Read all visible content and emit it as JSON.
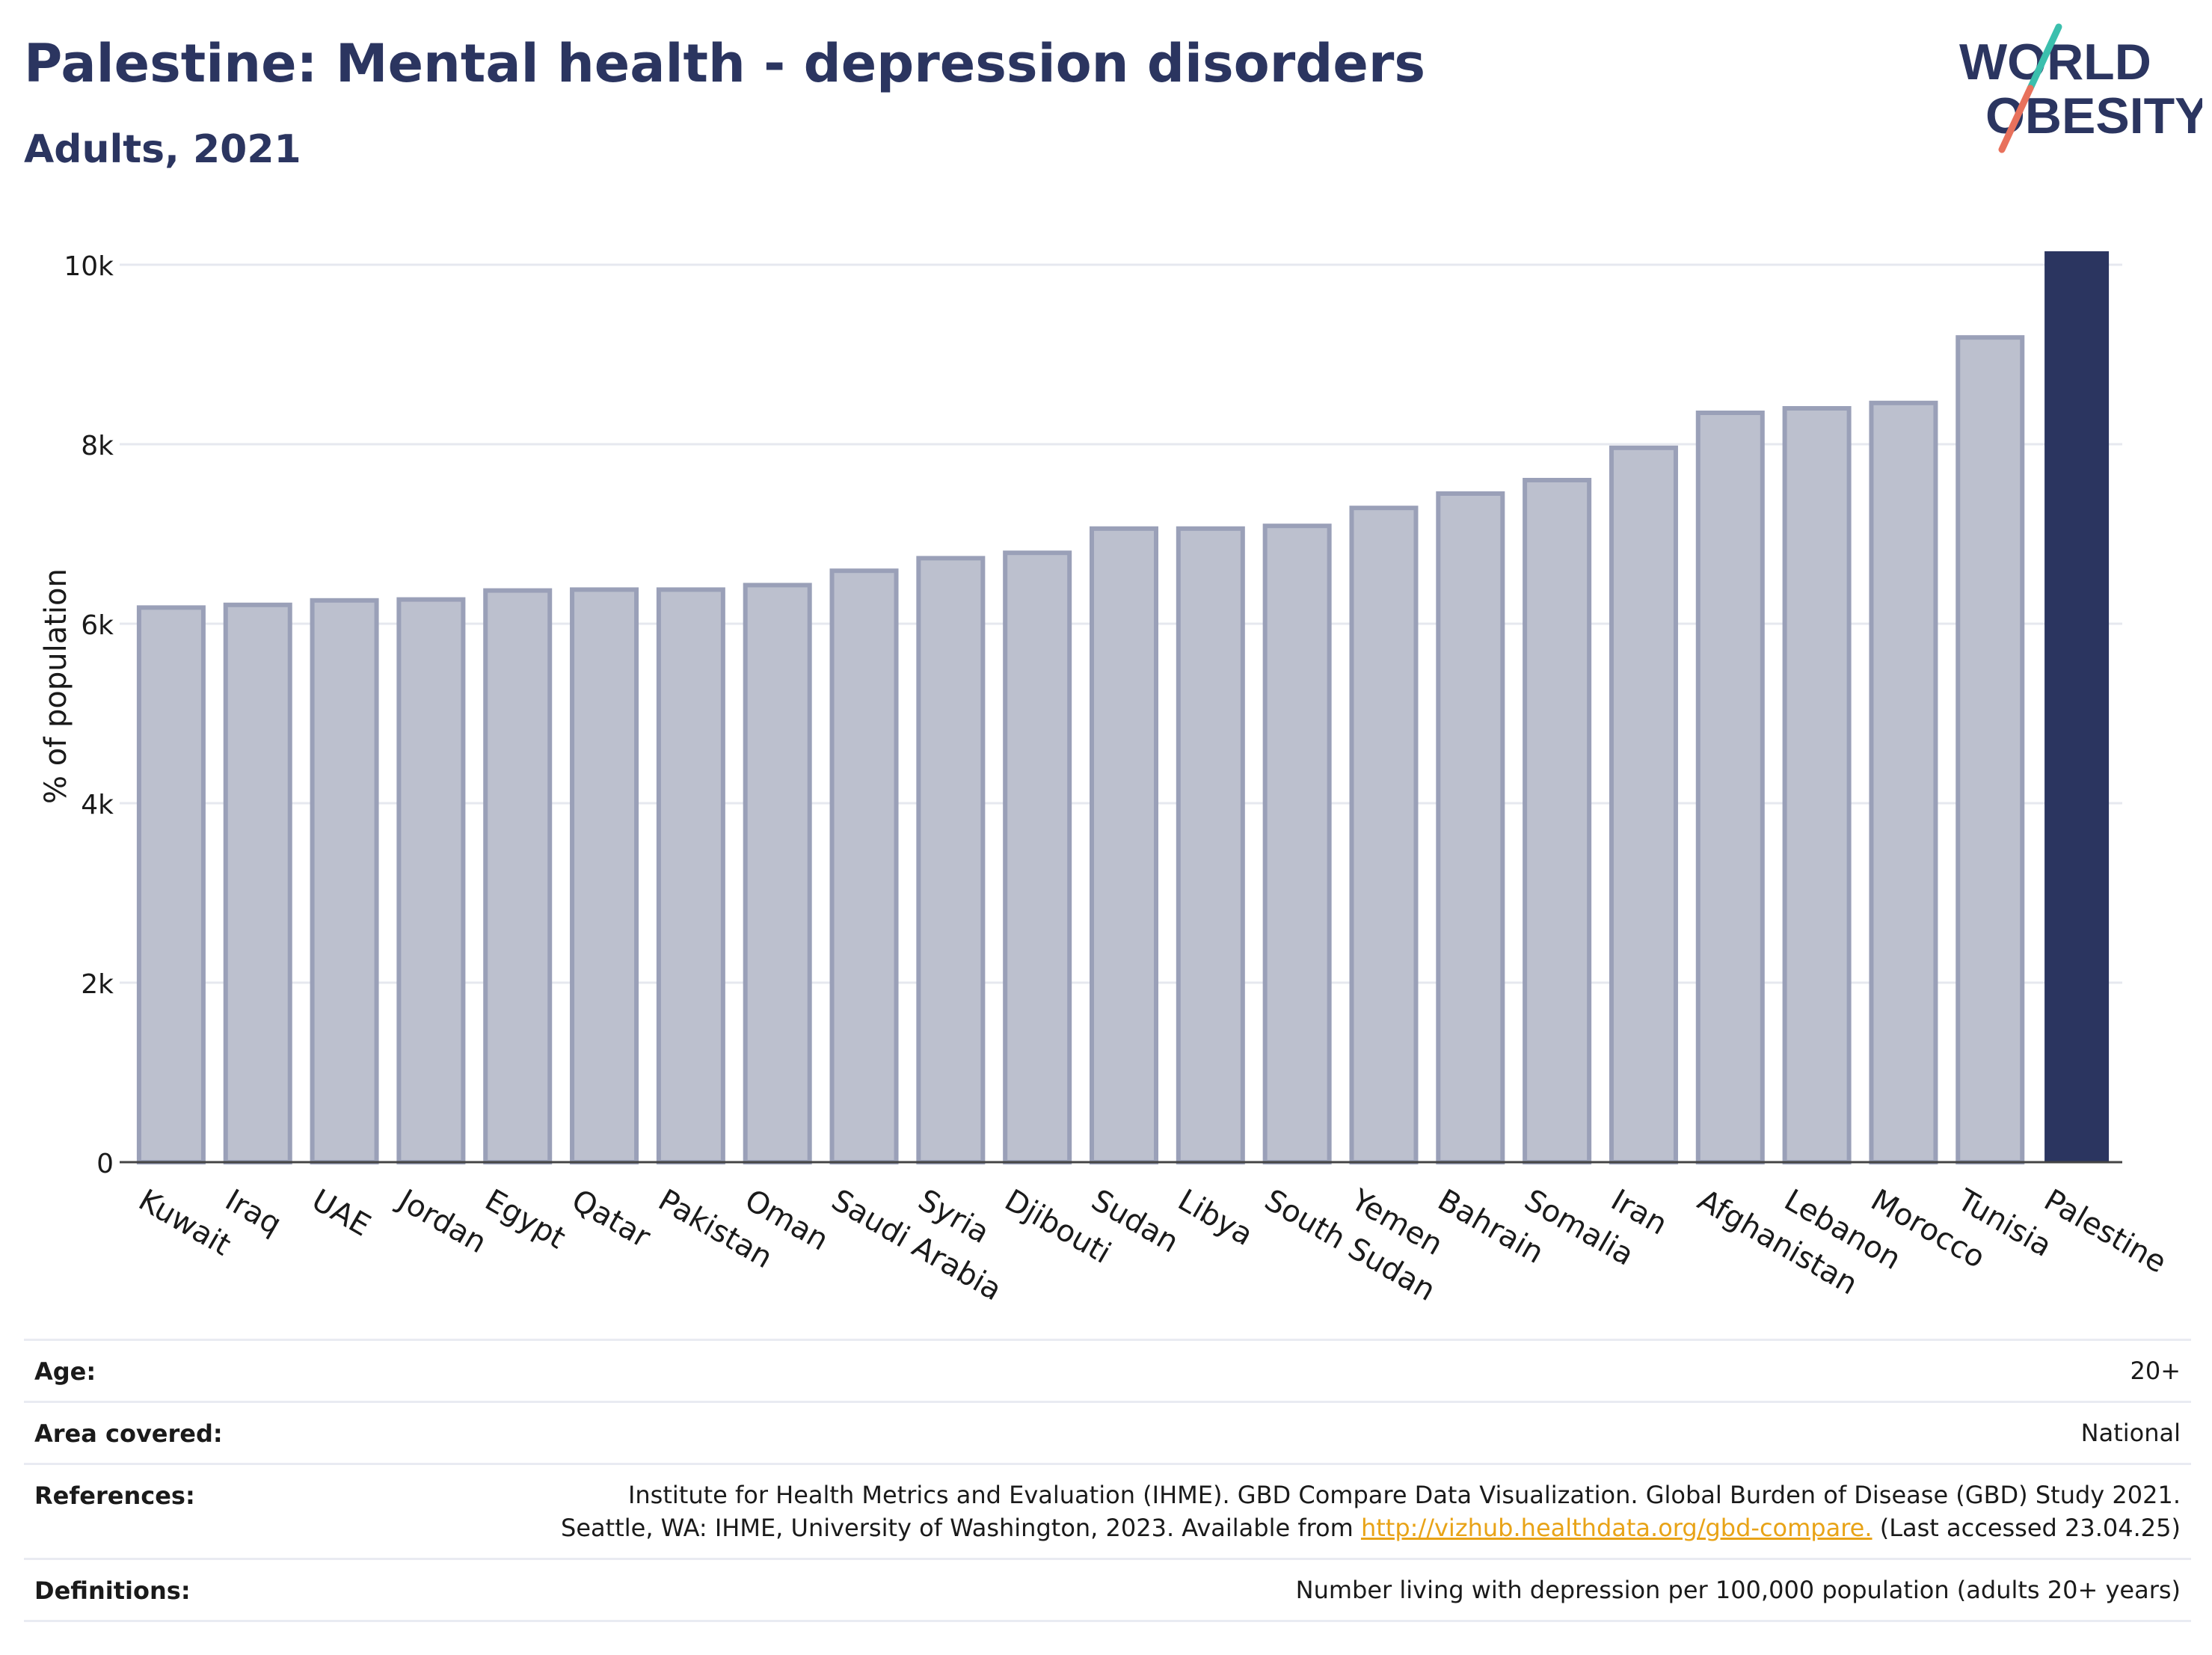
{
  "header": {
    "title": "Palestine: Mental health - depression disorders",
    "subtitle": "Adults, 2021"
  },
  "logo": {
    "line1": "WORLD",
    "line2": "OBESITY",
    "colors": {
      "text": "#2b3560",
      "teal": "#3bbfad",
      "coral": "#e8715c"
    }
  },
  "chart_data": {
    "type": "bar",
    "ylabel": "% of population",
    "ylim": [
      0,
      10000
    ],
    "yticks": [
      0,
      2000,
      4000,
      6000,
      8000,
      10000
    ],
    "ytick_labels": [
      "0",
      "2k",
      "4k",
      "6k",
      "8k",
      "10k"
    ],
    "grid": true,
    "categories": [
      "Kuwait",
      "Iraq",
      "UAE",
      "Jordan",
      "Egypt",
      "Qatar",
      "Pakistan",
      "Oman",
      "Saudi Arabia",
      "Syria",
      "Djibouti",
      "Sudan",
      "Libya",
      "South Sudan",
      "Yemen",
      "Bahrain",
      "Somalia",
      "Iran",
      "Afghanistan",
      "Lebanon",
      "Morocco",
      "Tunisia",
      "Palestine"
    ],
    "values": [
      6180,
      6210,
      6260,
      6270,
      6370,
      6380,
      6380,
      6430,
      6590,
      6730,
      6790,
      7060,
      7060,
      7090,
      7290,
      7450,
      7600,
      7960,
      8350,
      8400,
      8460,
      9190,
      10150
    ],
    "highlight": "Palestine",
    "colors": {
      "bar": "#bcc0ce",
      "bar_border": "#9aa0b8",
      "highlight": "#2b3560",
      "grid": "#e6e8ef"
    }
  },
  "meta": {
    "age": {
      "label": "Age:",
      "value": "20+"
    },
    "area": {
      "label": "Area covered:",
      "value": "National"
    },
    "references": {
      "label": "References:",
      "line1": "Institute for Health Metrics and Evaluation (IHME). GBD Compare Data Visualization. Global Burden of Disease (GBD) Study 2021.",
      "line2_pre": "Seattle, WA: IHME, University of Washington, 2023. Available from ",
      "link": "http://vizhub.healthdata.org/gbd-compare.",
      "line2_post": " (Last accessed 23.04.25)"
    },
    "definitions": {
      "label": "Definitions:",
      "value": "Number living with depression per 100,000 population (adults 20+ years)"
    }
  }
}
